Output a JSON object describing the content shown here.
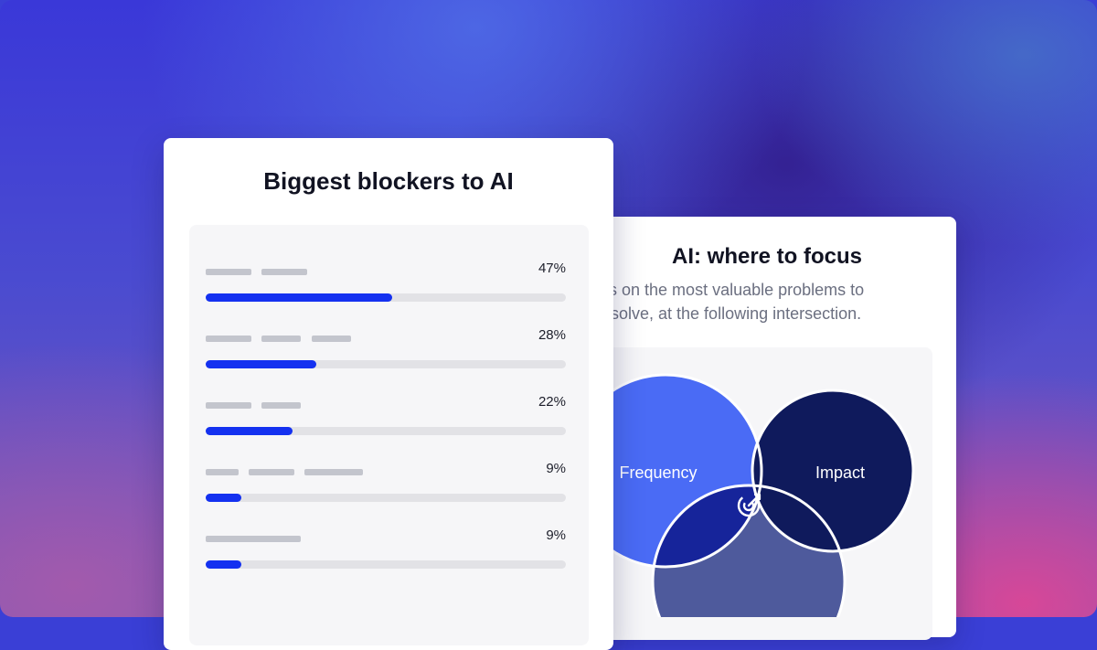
{
  "blockers": {
    "title": "Biggest blockers to AI",
    "rows": [
      {
        "percent_label": "47%",
        "value": 0.47
      },
      {
        "percent_label": "28%",
        "value": 0.28
      },
      {
        "percent_label": "22%",
        "value": 0.22
      },
      {
        "percent_label": "9%",
        "value": 0.09
      },
      {
        "percent_label": "9%",
        "value": 0.09
      }
    ]
  },
  "focus": {
    "title": "AI: where to focus",
    "subtitle_line1": "cus on the most valuable problems to",
    "subtitle_line2": "solve, at the following intersection.",
    "venn": {
      "frequency_label": "Frequency",
      "impact_label": "Impact",
      "center_icon": "target-icon"
    }
  },
  "colors": {
    "bar_fill": "#1431f0",
    "frequency": "#4a6bf5",
    "impact": "#0f1a5c",
    "overlap_bottom": "#16249a",
    "third_circle": "#4e5a9c"
  }
}
